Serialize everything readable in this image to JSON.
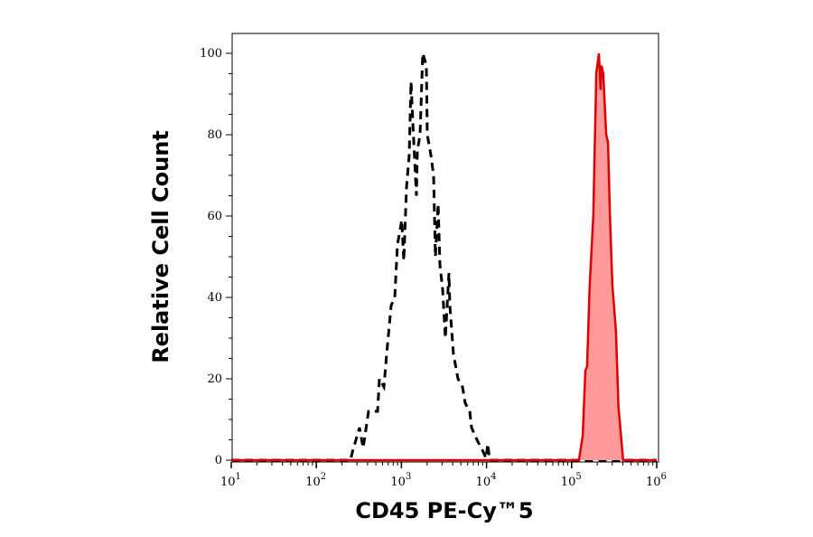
{
  "chart_data": {
    "type": "area",
    "xlabel": "CD45 PE-Cy™5",
    "ylabel": "Relative Cell Count",
    "xscale": "log",
    "xlim": [
      10,
      1000000
    ],
    "ylim": [
      0,
      100
    ],
    "x_ticks": [
      {
        "base": "10",
        "exp": "1",
        "value": 10
      },
      {
        "base": "10",
        "exp": "2",
        "value": 100
      },
      {
        "base": "10",
        "exp": "3",
        "value": 1000
      },
      {
        "base": "10",
        "exp": "4",
        "value": 10000
      },
      {
        "base": "10",
        "exp": "5",
        "value": 100000
      },
      {
        "base": "10",
        "exp": "6",
        "value": 1000000
      }
    ],
    "y_ticks": [
      "0",
      "20",
      "40",
      "60",
      "80",
      "100"
    ],
    "grid": false,
    "series": [
      {
        "style": "dashed-line",
        "color": "#000000",
        "x": [
          10,
          252,
          265,
          322,
          355,
          411,
          525,
          551,
          622,
          670,
          757,
          835,
          898,
          1010,
          1065,
          1146,
          1234,
          1297,
          1361,
          1500,
          1538,
          1656,
          1782,
          1963,
          2013,
          2218,
          2387,
          2506,
          2698,
          2834,
          3050,
          3281,
          3614,
          3705,
          4083,
          4621,
          5222,
          5616,
          6351,
          6668,
          7722,
          9167,
          9860,
          10350,
          10860,
          1000000
        ],
        "y": [
          0,
          0,
          2,
          8,
          3,
          12,
          12,
          20,
          18,
          26,
          38,
          40,
          53,
          59,
          49,
          67,
          75,
          93,
          83,
          65,
          76,
          80,
          100,
          97,
          80,
          75,
          70,
          50,
          63,
          48,
          42,
          30,
          46,
          38,
          26,
          20,
          18,
          14,
          12,
          8,
          5,
          2,
          0.5,
          4,
          0,
          0
        ]
      },
      {
        "style": "filled",
        "color": "#e00000",
        "fill": "#ff9a9a",
        "x": [
          10,
          122000,
          135000,
          145000,
          152000,
          163000,
          180000,
          195000,
          209000,
          219000,
          224000,
          235000,
          255000,
          268000,
          281000,
          301000,
          331000,
          356000,
          403000,
          1000000
        ],
        "y": [
          0,
          0,
          6,
          22,
          23,
          43,
          60,
          95,
          100,
          91,
          97,
          95,
          80,
          78,
          61,
          43,
          32,
          13,
          0,
          0
        ]
      }
    ]
  }
}
